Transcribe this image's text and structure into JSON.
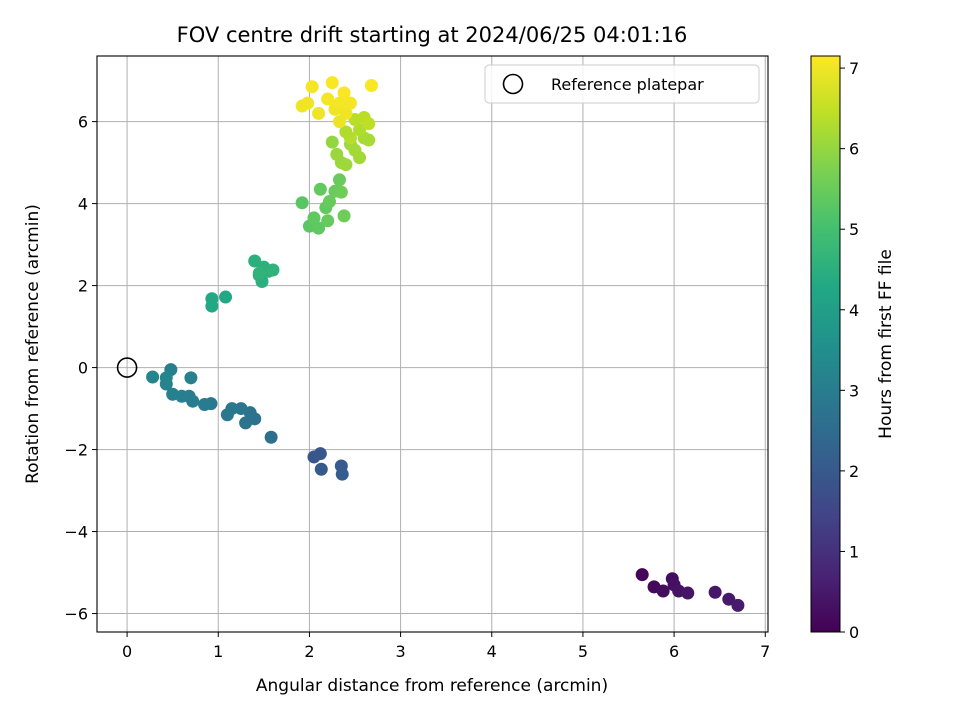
{
  "chart_data": {
    "type": "scatter",
    "title": "FOV centre drift starting at 2024/06/25 04:01:16",
    "xlabel": "Angular distance from reference (arcmin)",
    "ylabel": "Rotation from reference (arcmin)",
    "xlim": [
      -0.33,
      7.03
    ],
    "ylim": [
      -6.45,
      7.6
    ],
    "xticks": [
      0,
      1,
      2,
      3,
      4,
      5,
      6,
      7
    ],
    "yticks": [
      -6,
      -4,
      -2,
      0,
      2,
      4,
      6
    ],
    "grid": true,
    "legend": {
      "placement": "top-right",
      "entries": [
        "Reference platepar"
      ]
    },
    "reference_point": {
      "name": "Reference platepar",
      "x": 0,
      "y": 0
    },
    "colorbar": {
      "label": "Hours from first FF file",
      "colormap": "viridis",
      "range": [
        0,
        7.15
      ],
      "ticks": [
        0,
        1,
        2,
        3,
        4,
        5,
        6,
        7
      ]
    },
    "points": [
      {
        "x": 5.65,
        "y": -5.05,
        "c": 0.1
      },
      {
        "x": 5.78,
        "y": -5.35,
        "c": 0.15
      },
      {
        "x": 5.88,
        "y": -5.45,
        "c": 0.2
      },
      {
        "x": 5.98,
        "y": -5.15,
        "c": 0.25
      },
      {
        "x": 6.0,
        "y": -5.3,
        "c": 0.3
      },
      {
        "x": 6.05,
        "y": -5.45,
        "c": 0.35
      },
      {
        "x": 6.15,
        "y": -5.5,
        "c": 0.4
      },
      {
        "x": 6.45,
        "y": -5.48,
        "c": 0.45
      },
      {
        "x": 6.6,
        "y": -5.65,
        "c": 0.5
      },
      {
        "x": 6.7,
        "y": -5.8,
        "c": 0.55
      },
      {
        "x": 2.05,
        "y": -2.18,
        "c": 1.9
      },
      {
        "x": 2.12,
        "y": -2.1,
        "c": 1.95
      },
      {
        "x": 2.13,
        "y": -2.48,
        "c": 2.0
      },
      {
        "x": 2.35,
        "y": -2.4,
        "c": 2.05
      },
      {
        "x": 2.36,
        "y": -2.6,
        "c": 2.1
      },
      {
        "x": 1.58,
        "y": -1.7,
        "c": 2.6
      },
      {
        "x": 1.4,
        "y": -1.25,
        "c": 2.7
      },
      {
        "x": 1.35,
        "y": -1.1,
        "c": 2.75
      },
      {
        "x": 1.3,
        "y": -1.35,
        "c": 2.75
      },
      {
        "x": 1.25,
        "y": -1.0,
        "c": 2.8
      },
      {
        "x": 1.15,
        "y": -1.0,
        "c": 2.85
      },
      {
        "x": 1.1,
        "y": -1.15,
        "c": 2.85
      },
      {
        "x": 0.92,
        "y": -0.88,
        "c": 2.9
      },
      {
        "x": 0.85,
        "y": -0.9,
        "c": 2.95
      },
      {
        "x": 0.72,
        "y": -0.82,
        "c": 3.0
      },
      {
        "x": 0.68,
        "y": -0.7,
        "c": 3.0
      },
      {
        "x": 0.7,
        "y": -0.25,
        "c": 3.05
      },
      {
        "x": 0.6,
        "y": -0.7,
        "c": 3.05
      },
      {
        "x": 0.5,
        "y": -0.65,
        "c": 3.1
      },
      {
        "x": 0.48,
        "y": -0.05,
        "c": 3.1
      },
      {
        "x": 0.43,
        "y": -0.4,
        "c": 3.15
      },
      {
        "x": 0.43,
        "y": -0.25,
        "c": 3.2
      },
      {
        "x": 0.28,
        "y": -0.23,
        "c": 3.2
      },
      {
        "x": 0.93,
        "y": 1.68,
        "c": 4.3
      },
      {
        "x": 0.93,
        "y": 1.5,
        "c": 4.3
      },
      {
        "x": 1.08,
        "y": 1.72,
        "c": 4.3
      },
      {
        "x": 1.4,
        "y": 2.6,
        "c": 4.5
      },
      {
        "x": 1.45,
        "y": 2.25,
        "c": 4.5
      },
      {
        "x": 1.48,
        "y": 2.1,
        "c": 4.5
      },
      {
        "x": 1.5,
        "y": 2.45,
        "c": 4.55
      },
      {
        "x": 1.55,
        "y": 2.35,
        "c": 4.55
      },
      {
        "x": 1.6,
        "y": 2.38,
        "c": 4.6
      },
      {
        "x": 1.45,
        "y": 2.3,
        "c": 4.6
      },
      {
        "x": 1.92,
        "y": 4.02,
        "c": 5.3
      },
      {
        "x": 2.0,
        "y": 3.45,
        "c": 5.3
      },
      {
        "x": 2.05,
        "y": 3.65,
        "c": 5.35
      },
      {
        "x": 2.1,
        "y": 3.4,
        "c": 5.35
      },
      {
        "x": 2.12,
        "y": 4.35,
        "c": 5.4
      },
      {
        "x": 2.18,
        "y": 3.9,
        "c": 5.4
      },
      {
        "x": 2.2,
        "y": 3.58,
        "c": 5.45
      },
      {
        "x": 2.22,
        "y": 4.05,
        "c": 5.45
      },
      {
        "x": 2.28,
        "y": 4.3,
        "c": 5.5
      },
      {
        "x": 2.33,
        "y": 4.58,
        "c": 5.5
      },
      {
        "x": 2.35,
        "y": 4.28,
        "c": 5.55
      },
      {
        "x": 2.38,
        "y": 3.7,
        "c": 5.55
      },
      {
        "x": 2.25,
        "y": 5.5,
        "c": 6.0
      },
      {
        "x": 2.3,
        "y": 5.2,
        "c": 6.05
      },
      {
        "x": 2.35,
        "y": 5.0,
        "c": 6.05
      },
      {
        "x": 2.4,
        "y": 4.95,
        "c": 6.1
      },
      {
        "x": 2.45,
        "y": 5.45,
        "c": 6.1
      },
      {
        "x": 2.5,
        "y": 5.3,
        "c": 6.15
      },
      {
        "x": 2.55,
        "y": 5.12,
        "c": 6.15
      },
      {
        "x": 2.6,
        "y": 5.6,
        "c": 6.2
      },
      {
        "x": 2.65,
        "y": 5.55,
        "c": 6.2
      },
      {
        "x": 2.55,
        "y": 5.8,
        "c": 6.3
      },
      {
        "x": 2.6,
        "y": 6.1,
        "c": 6.4
      },
      {
        "x": 2.5,
        "y": 6.05,
        "c": 6.4
      },
      {
        "x": 2.65,
        "y": 5.95,
        "c": 6.45
      },
      {
        "x": 2.45,
        "y": 5.6,
        "c": 6.35
      },
      {
        "x": 2.4,
        "y": 5.75,
        "c": 6.3
      },
      {
        "x": 1.92,
        "y": 6.38,
        "c": 7.0
      },
      {
        "x": 1.98,
        "y": 6.45,
        "c": 7.0
      },
      {
        "x": 2.03,
        "y": 6.85,
        "c": 7.05
      },
      {
        "x": 2.1,
        "y": 6.2,
        "c": 7.0
      },
      {
        "x": 2.2,
        "y": 6.55,
        "c": 7.05
      },
      {
        "x": 2.25,
        "y": 6.95,
        "c": 7.1
      },
      {
        "x": 2.28,
        "y": 6.3,
        "c": 7.0
      },
      {
        "x": 2.33,
        "y": 6.45,
        "c": 7.05
      },
      {
        "x": 2.38,
        "y": 6.7,
        "c": 7.1
      },
      {
        "x": 2.4,
        "y": 6.2,
        "c": 7.0
      },
      {
        "x": 2.45,
        "y": 6.45,
        "c": 7.05
      },
      {
        "x": 2.33,
        "y": 6.0,
        "c": 6.95
      },
      {
        "x": 2.68,
        "y": 6.88,
        "c": 7.1
      }
    ]
  }
}
